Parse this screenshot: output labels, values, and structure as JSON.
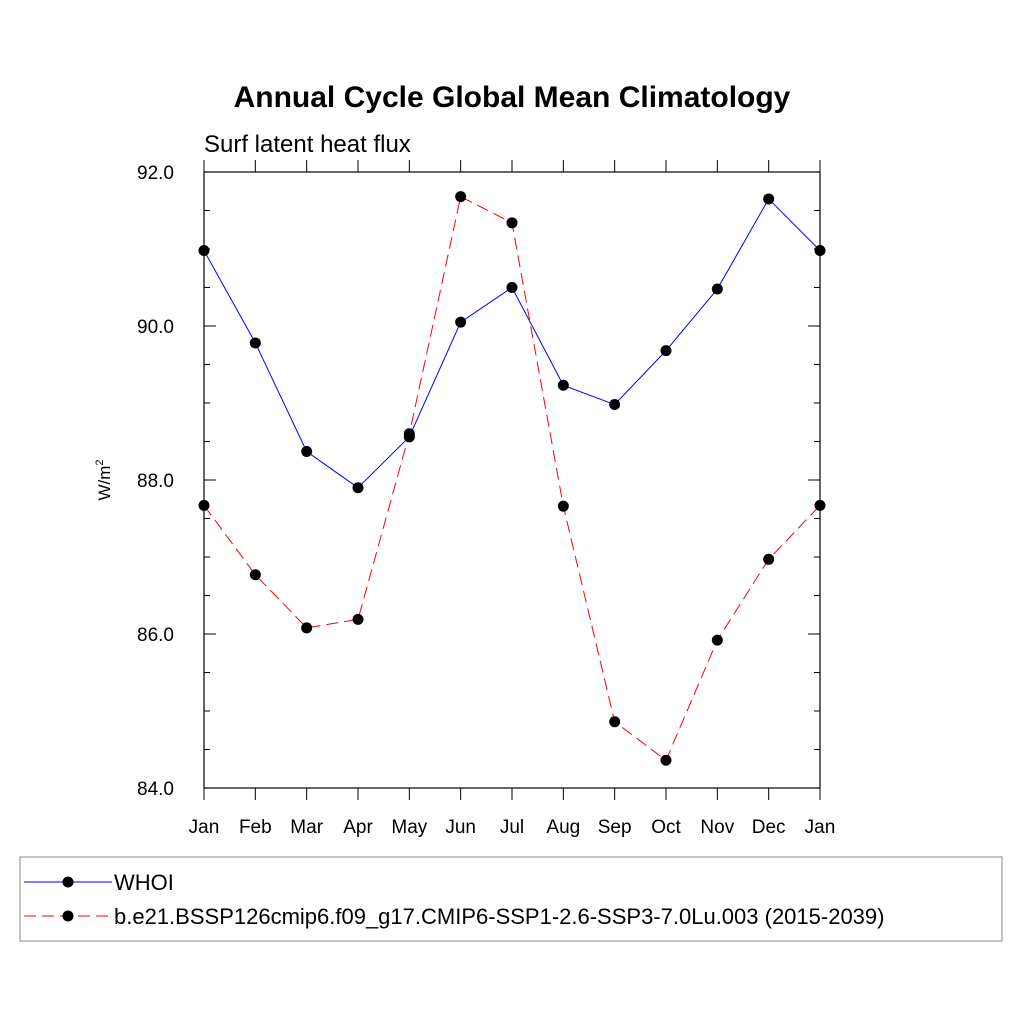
{
  "chart_data": {
    "type": "line",
    "title": "Annual Cycle Global Mean Climatology",
    "subtitle": "Surf latent heat flux",
    "ylabel": "W/m",
    "ylabel_sup": "2",
    "xlabel": "",
    "categories": [
      "Jan",
      "Feb",
      "Mar",
      "Apr",
      "May",
      "Jun",
      "Jul",
      "Aug",
      "Sep",
      "Oct",
      "Nov",
      "Dec",
      "Jan"
    ],
    "ylim": [
      84.0,
      92.0
    ],
    "yticks": [
      "84.0",
      "86.0",
      "88.0",
      "90.0",
      "92.0"
    ],
    "grid": false,
    "legend_position": "bottom",
    "series": [
      {
        "name": "WHOI",
        "color": "#0000ff",
        "dash": "solid",
        "marker": "filled-circle",
        "values": [
          90.98,
          89.78,
          88.37,
          87.9,
          88.56,
          90.05,
          90.5,
          89.23,
          88.98,
          89.68,
          90.48,
          91.65,
          90.98
        ]
      },
      {
        "name": "b.e21.BSSP126cmip6.f09_g17.CMIP6-SSP1-2.6-SSP3-7.0Lu.003 (2015-2039)",
        "color": "#ff0000",
        "dash": "dashed",
        "marker": "filled-circle",
        "values": [
          87.67,
          86.77,
          86.08,
          86.19,
          88.6,
          91.68,
          91.34,
          87.66,
          84.86,
          84.36,
          85.92,
          86.97,
          87.67
        ]
      }
    ]
  }
}
